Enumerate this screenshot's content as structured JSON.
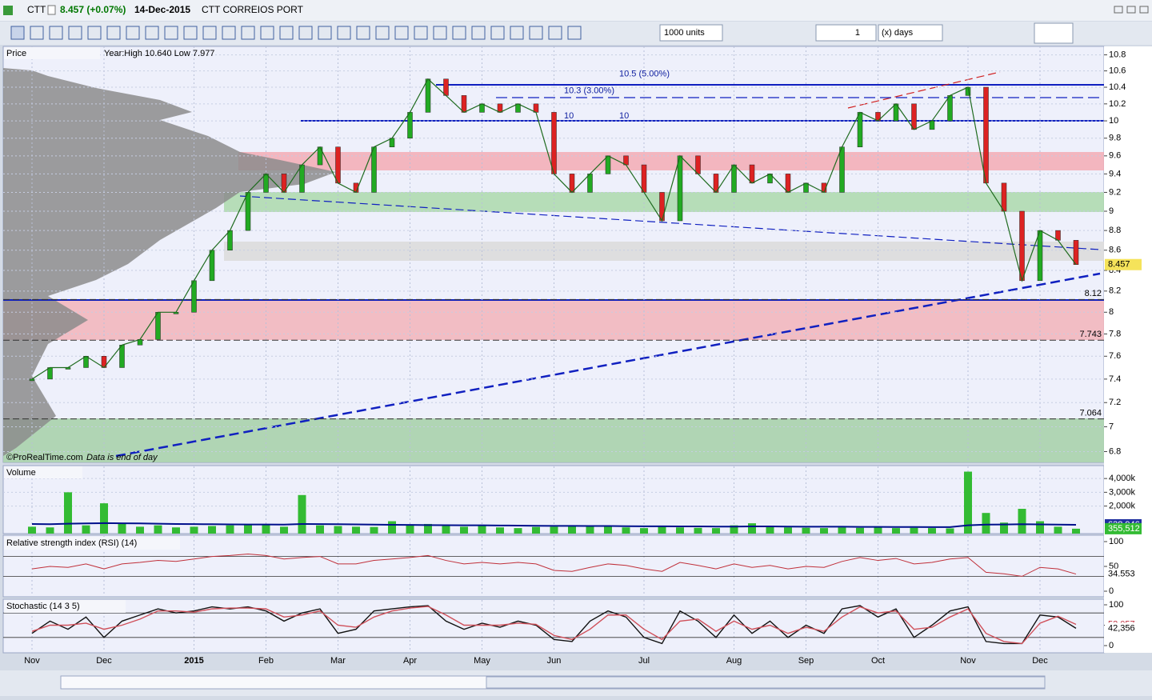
{
  "header": {
    "symbol": "CTT",
    "price": "8.457 (+0.07%)",
    "date": "14-Dec-2015",
    "name": "CTT CORREIOS PORT"
  },
  "toolbar": {
    "units": "1000 units",
    "count": "1",
    "period": "(x) days"
  },
  "chart_data": [
    {
      "type": "line",
      "title": "Price",
      "subtitle": "Year:High 10.640 Low 7.977",
      "log_scale": true,
      "grid": true,
      "color": "#1f6b1f",
      "categories": [
        "Nov",
        null,
        null,
        null,
        "Dec",
        null,
        null,
        null,
        null,
        "2015",
        null,
        null,
        null,
        "Feb",
        null,
        null,
        null,
        "Mar",
        null,
        null,
        null,
        "Apr",
        null,
        null,
        null,
        "May",
        null,
        null,
        null,
        "Jun",
        null,
        null,
        null,
        null,
        "Jul",
        null,
        null,
        null,
        null,
        "Aug",
        null,
        null,
        null,
        "Sep",
        null,
        null,
        null,
        "Oct",
        null,
        null,
        null,
        null,
        "Nov",
        null,
        null,
        null,
        "Dec",
        null,
        null
      ],
      "values": [
        7.4,
        7.5,
        7.5,
        7.6,
        7.5,
        7.7,
        7.75,
        8.0,
        8.0,
        8.3,
        8.6,
        8.8,
        9.2,
        9.4,
        9.2,
        9.5,
        9.7,
        9.3,
        9.2,
        9.7,
        9.8,
        10.1,
        10.5,
        10.3,
        10.1,
        10.2,
        10.1,
        10.2,
        10.1,
        9.4,
        9.2,
        9.4,
        9.6,
        9.5,
        9.2,
        8.9,
        9.6,
        9.4,
        9.2,
        9.5,
        9.3,
        9.4,
        9.2,
        9.3,
        9.2,
        9.7,
        10.1,
        10.0,
        10.2,
        9.9,
        10.0,
        10.3,
        10.4,
        9.3,
        9.0,
        8.3,
        8.8,
        8.7,
        8.457
      ],
      "ylim": [
        6.715,
        10.907
      ],
      "yticks": [
        6.8,
        7,
        7.2,
        7.4,
        7.6,
        7.8,
        8,
        8.2,
        8.4,
        8.6,
        8.8,
        9,
        9.2,
        9.4,
        9.6,
        9.8,
        10,
        10.2,
        10.4,
        10.6,
        10.8
      ],
      "levels": [
        {
          "value": 8.12,
          "label": "8.12"
        },
        {
          "value": 7.743,
          "label": "7.743"
        },
        {
          "value": 7.064,
          "label": "7.064"
        }
      ],
      "annotations": [
        {
          "value": 10.5,
          "label": "10.5 (5.00%)"
        },
        {
          "value": 10.3,
          "label": "10.3 (3.00%)"
        },
        {
          "value": 10,
          "label": "10"
        },
        {
          "value": 10,
          "label": "10"
        }
      ],
      "last_value": {
        "value": 8.457,
        "label": "8.457"
      },
      "footer": [
        "©ProRealTime.com",
        "Data is end of day"
      ]
    },
    {
      "type": "bar",
      "title": "Volume",
      "grid": true,
      "series": [
        {
          "color": "#33bb33",
          "values": [
            500000,
            450000,
            3000000,
            600000,
            2200000,
            700000,
            500000,
            600000,
            450000,
            500000,
            550000,
            600000,
            700000,
            650000,
            500000,
            2800000,
            600000,
            550000,
            500000,
            480000,
            900000,
            600000,
            700000,
            550000,
            500000,
            600000,
            450000,
            400000,
            480000,
            500000,
            600000,
            550000,
            500000,
            450000,
            400000,
            500000,
            450000,
            420000,
            400000,
            600000,
            750000,
            500000,
            450000,
            420000,
            400000,
            450000,
            420000,
            480000,
            400000,
            420000,
            400000,
            380000,
            4500000,
            1500000,
            800000,
            1800000,
            900000,
            500000,
            355512
          ]
        },
        {
          "color": "#00108b",
          "values": [
            700000,
            680000,
            720000,
            740000,
            760000,
            750000,
            740000,
            720000,
            700000,
            690000,
            680000,
            670000,
            660000,
            660000,
            650000,
            700000,
            690000,
            680000,
            670000,
            650000,
            640000,
            630000,
            620000,
            610000,
            600000,
            600000,
            590000,
            580000,
            570000,
            560000,
            560000,
            550000,
            550000,
            540000,
            530000,
            530000,
            520000,
            520000,
            510000,
            510000,
            520000,
            520000,
            510000,
            500000,
            500000,
            500000,
            490000,
            490000,
            480000,
            480000,
            470000,
            470000,
            600000,
            650000,
            660000,
            680000,
            670000,
            650000,
            638946
          ]
        }
      ],
      "ylim": [
        0,
        4880000
      ],
      "yticks": [
        {
          "value": 2000000,
          "label": "2,000k"
        },
        {
          "value": 3000000,
          "label": "3,000k"
        },
        {
          "value": 4000000,
          "label": "4,000k"
        }
      ],
      "last_values": [
        {
          "value": 638946,
          "label": "638,946"
        },
        {
          "value": 355512,
          "label": "355,512"
        }
      ]
    },
    {
      "type": "line",
      "title": "Relative strength index (RSI) (14)",
      "color": "#c0303a",
      "values": [
        45,
        50,
        48,
        55,
        45,
        55,
        58,
        62,
        60,
        65,
        70,
        72,
        75,
        72,
        65,
        68,
        70,
        55,
        55,
        62,
        65,
        68,
        72,
        62,
        55,
        58,
        55,
        58,
        55,
        42,
        40,
        48,
        55,
        52,
        45,
        40,
        58,
        52,
        45,
        55,
        48,
        52,
        45,
        50,
        48,
        60,
        68,
        62,
        66,
        55,
        58,
        65,
        68,
        38,
        35,
        30,
        48,
        45,
        34.553
      ],
      "ylim": [
        -9.7,
        111.3
      ],
      "yticks": [
        0,
        50,
        100
      ],
      "bands": [
        30,
        70
      ],
      "last_value": {
        "value": 34.553,
        "label": "34.553"
      }
    },
    {
      "type": "line",
      "title": "Stochastic (14 3 5)",
      "series": [
        {
          "color": "#111111",
          "values": [
            30,
            60,
            40,
            70,
            20,
            60,
            75,
            90,
            80,
            85,
            95,
            90,
            95,
            85,
            60,
            80,
            90,
            30,
            40,
            85,
            90,
            95,
            98,
            60,
            40,
            55,
            45,
            60,
            50,
            15,
            10,
            60,
            85,
            70,
            20,
            5,
            85,
            60,
            20,
            75,
            30,
            60,
            20,
            50,
            30,
            90,
            98,
            70,
            90,
            20,
            50,
            85,
            95,
            10,
            5,
            5,
            75,
            70,
            42.356
          ]
        },
        {
          "color": "#d0505a",
          "values": [
            35,
            50,
            50,
            55,
            40,
            50,
            65,
            85,
            85,
            82,
            90,
            92,
            92,
            90,
            70,
            75,
            85,
            50,
            45,
            70,
            85,
            92,
            96,
            75,
            50,
            50,
            50,
            55,
            52,
            25,
            15,
            40,
            75,
            75,
            40,
            15,
            60,
            65,
            35,
            60,
            40,
            50,
            30,
            45,
            35,
            70,
            95,
            80,
            85,
            40,
            45,
            70,
            90,
            30,
            10,
            5,
            55,
            72,
            52.057
          ]
        }
      ],
      "ylim": [
        -15.7,
        111.8
      ],
      "yticks": [
        0,
        50,
        100
      ],
      "bands": [
        20,
        80
      ],
      "last_values": [
        {
          "value": 52.057,
          "label": "52,057"
        },
        {
          "value": 42.356,
          "label": "42,356"
        }
      ]
    }
  ]
}
